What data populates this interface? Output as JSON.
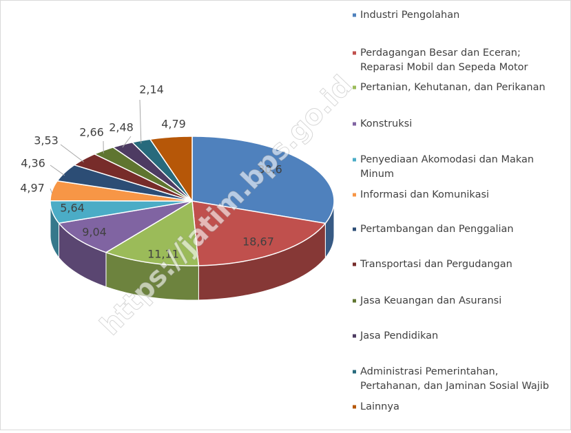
{
  "chart_data": {
    "type": "pie3d",
    "categories": [
      "Industri Pengolahan",
      "Perdagangan Besar dan Eceran; Reparasi Mobil dan Sepeda Motor",
      "Pertanian, Kehutanan, dan Perikanan",
      "Konstruksi",
      "Penyediaan Akomodasi dan Makan Minum",
      "Informasi dan Komunikasi",
      "Pertambangan dan Penggalian",
      "Transportasi dan Pergudangan",
      "Jasa Keuangan dan Asuransi",
      "Jasa Pendidikan",
      "Administrasi Pemerintahan, Pertahanan, dan Jaminan Sosial Wajib",
      "Lainnya"
    ],
    "values": [
      30.6,
      18.67,
      11.11,
      9.04,
      5.64,
      4.97,
      4.36,
      3.53,
      2.66,
      2.48,
      2.14,
      4.79
    ],
    "value_labels": [
      "30,6",
      "18,67",
      "11,11",
      "9,04",
      "5,64",
      "4,97",
      "4,36",
      "3,53",
      "2,66",
      "2,48",
      "2,14",
      "4,79"
    ],
    "colors": [
      "#4f81bd",
      "#c0504d",
      "#9bbb59",
      "#8064a2",
      "#4bacc6",
      "#f79646",
      "#2c4d75",
      "#772c2a",
      "#5f7530",
      "#4d3b62",
      "#276a7c",
      "#b65708"
    ],
    "legend": "right",
    "watermark": "https://jatim.bps.go.id"
  }
}
